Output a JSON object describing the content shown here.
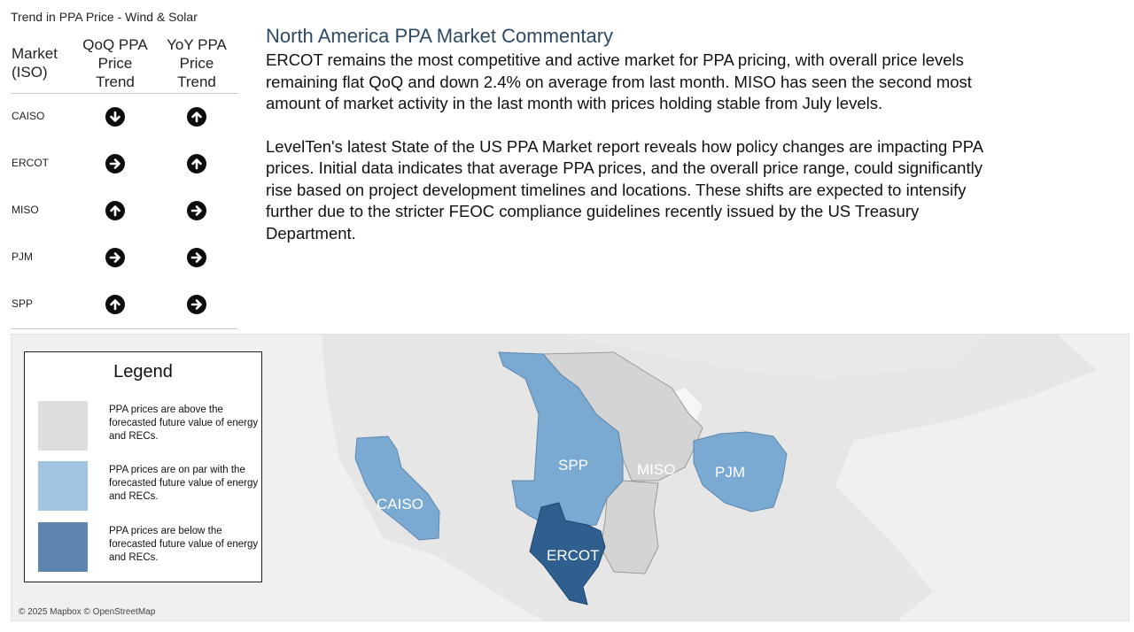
{
  "panel_title": "Trend in PPA Price - Wind & Solar",
  "table": {
    "headers": {
      "market": [
        "Market",
        "(ISO)"
      ],
      "qoq": [
        "QoQ PPA",
        "Price",
        "Trend"
      ],
      "yoy": [
        "YoY PPA",
        "Price",
        "Trend"
      ]
    },
    "rows": [
      {
        "market": "CAISO",
        "qoq": "down",
        "yoy": "up"
      },
      {
        "market": "ERCOT",
        "qoq": "flat",
        "yoy": "up"
      },
      {
        "market": "MISO",
        "qoq": "up",
        "yoy": "flat"
      },
      {
        "market": "PJM",
        "qoq": "flat",
        "yoy": "flat"
      },
      {
        "market": "SPP",
        "qoq": "up",
        "yoy": "flat"
      }
    ],
    "arrow_icons": {
      "down": "arrow-down-circle-icon",
      "up": "arrow-up-circle-icon",
      "flat": "arrow-right-circle-icon"
    }
  },
  "commentary": {
    "title": "North America PPA Market Commentary",
    "paragraphs": [
      "ERCOT remains the most competitive and active market for PPA pricing, with overall price levels remaining flat QoQ and down 2.4% on average from last month. MISO has seen the second most amount of market activity in the last month with prices holding stable from July levels.",
      "LevelTen's latest State of the US PPA Market report reveals how policy changes are impacting PPA prices. Initial data indicates that average PPA prices, and the overall price range, could significantly rise based on project development timelines and locations. These shifts are expected to intensify further due to the stricter FEOC compliance guidelines recently issued by the US Treasury Department."
    ]
  },
  "map": {
    "regions": [
      {
        "name": "CAISO",
        "color": "#7aaad2"
      },
      {
        "name": "SPP",
        "color": "#7aaad2"
      },
      {
        "name": "MISO",
        "color": "#d4d4d4"
      },
      {
        "name": "PJM",
        "color": "#7aaad2"
      },
      {
        "name": "ERCOT",
        "color": "#2f5f8e"
      }
    ],
    "attribution": "© 2025 Mapbox © OpenStreetMap"
  },
  "legend": {
    "title": "Legend",
    "items": [
      {
        "color": "#dddddd",
        "text": "PPA prices are above the forecasted future value of energy and RECs."
      },
      {
        "color": "#a2c4e0",
        "text": "PPA prices are on par with the forecasted future value of energy and RECs."
      },
      {
        "color": "#5d85ad",
        "text": "PPA prices are below the forecasted future value of energy and RECs."
      }
    ]
  }
}
